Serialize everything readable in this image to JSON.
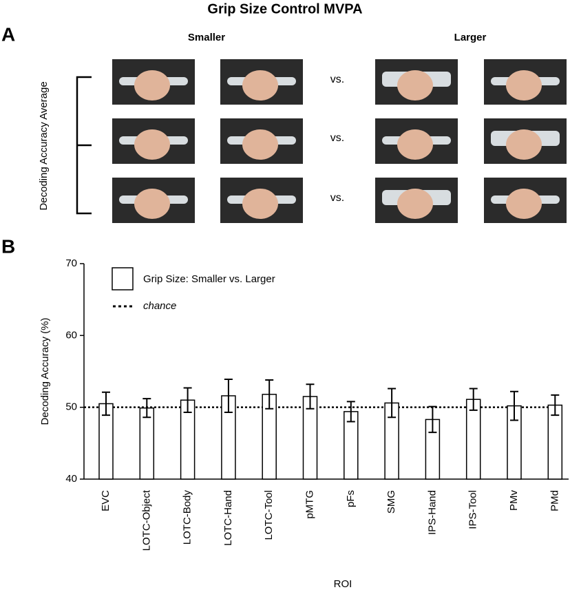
{
  "figure": {
    "title": "Grip Size Control MVPA",
    "panel_a_label": "A",
    "panel_b_label": "B",
    "smaller": "Smaller",
    "larger": "Larger",
    "vs": [
      "vs.",
      "vs.",
      "vs."
    ],
    "bracket_label": "Decoding Accuracy Average"
  },
  "chart_data": {
    "type": "bar",
    "x_label": "ROI",
    "y_label": "Decoding Accuracy (%)",
    "categories": [
      "EVC",
      "LOTC-Object",
      "LOTC-Body",
      "LOTC-Hand",
      "LOTC-Tool",
      "pMTG",
      "pFs",
      "SMG",
      "IPS-Hand",
      "IPS-Tool",
      "PMv",
      "PMd"
    ],
    "series": [
      {
        "name": "Grip Size: Smaller vs. Larger",
        "color": "#ffffff",
        "values": [
          50.5,
          49.9,
          51.0,
          51.6,
          51.8,
          51.5,
          49.4,
          50.6,
          48.3,
          51.1,
          50.2,
          50.3
        ],
        "errors": [
          1.6,
          1.3,
          1.7,
          2.3,
          2.0,
          1.7,
          1.4,
          2.0,
          1.8,
          1.5,
          2.0,
          1.4
        ]
      }
    ],
    "reference_line": {
      "name": "chance",
      "value": 50
    },
    "ylim": [
      40,
      70
    ],
    "yticks": [
      40,
      50,
      60,
      70
    ]
  }
}
